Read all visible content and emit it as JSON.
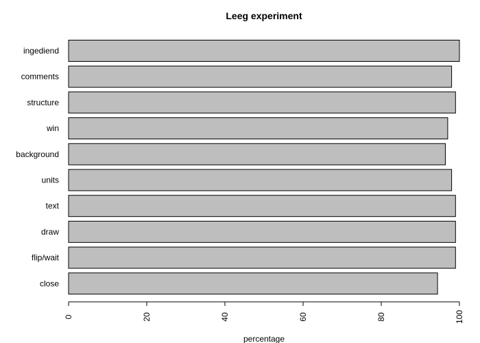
{
  "chart_data": {
    "type": "bar",
    "orientation": "horizontal",
    "title": "Leeg experiment",
    "xlabel": "percentage",
    "ylabel": "",
    "categories": [
      "ingediend",
      "comments",
      "structure",
      "win",
      "background",
      "units",
      "text",
      "draw",
      "flip/wait",
      "close"
    ],
    "values": [
      100,
      98,
      99,
      97,
      96.4,
      98,
      99,
      99,
      99,
      94.4
    ],
    "xlim": [
      0,
      100
    ],
    "xticks": [
      "0",
      "20",
      "40",
      "60",
      "80",
      "100"
    ],
    "grid": false,
    "colors": {
      "bar_fill": "#bebebe",
      "bar_stroke": "#000000"
    }
  }
}
